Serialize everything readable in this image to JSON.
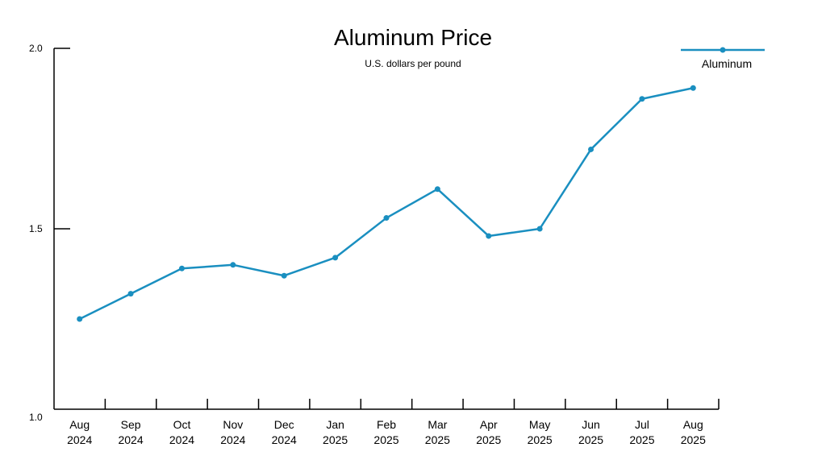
{
  "chart_data": {
    "type": "line",
    "title": "Aluminum Price",
    "subtitle": "U.S. dollars per pound",
    "xlabel": "",
    "ylabel": "",
    "ylim": [
      1.0,
      2.0
    ],
    "yticks": [
      "1.0",
      "1.5",
      "2.0"
    ],
    "grid": false,
    "legend_position": "top-right",
    "categories": [
      [
        "Aug",
        "2024"
      ],
      [
        "Sep",
        "2024"
      ],
      [
        "Oct",
        "2024"
      ],
      [
        "Nov",
        "2024"
      ],
      [
        "Dec",
        "2024"
      ],
      [
        "Jan",
        "2025"
      ],
      [
        "Feb",
        "2025"
      ],
      [
        "Mar",
        "2025"
      ],
      [
        "Apr",
        "2025"
      ],
      [
        "May",
        "2025"
      ],
      [
        "Jun",
        "2025"
      ],
      [
        "Jul",
        "2025"
      ],
      [
        "Aug",
        "2025"
      ]
    ],
    "series": [
      {
        "name": "Aluminum",
        "color": "#1a8fc0",
        "values": [
          1.25,
          1.32,
          1.39,
          1.4,
          1.37,
          1.42,
          1.53,
          1.61,
          1.48,
          1.5,
          1.72,
          1.86,
          1.89
        ]
      }
    ]
  }
}
